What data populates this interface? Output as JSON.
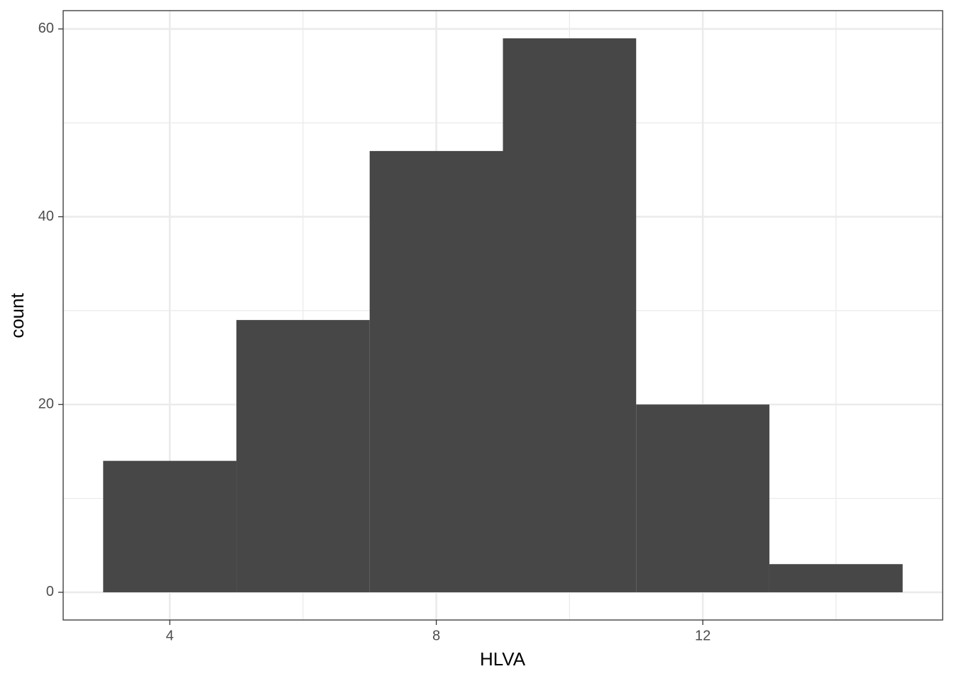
{
  "chart_data": {
    "type": "histogram",
    "x_label": "HLVA",
    "y_label": "count",
    "bins": [
      3,
      5,
      7,
      9,
      11,
      13,
      15
    ],
    "counts": [
      14,
      29,
      47,
      59,
      20,
      3
    ],
    "color": "#474747",
    "xlim": [
      2.4,
      15.6
    ],
    "ylim": [
      -2.95,
      61.95
    ],
    "xticks": [
      4,
      8,
      12
    ],
    "yticks": [
      0,
      20,
      40,
      60
    ],
    "x_minor_ticks": [
      6,
      10,
      14
    ],
    "y_minor_ticks": [
      10,
      30,
      50
    ],
    "grid": true
  }
}
